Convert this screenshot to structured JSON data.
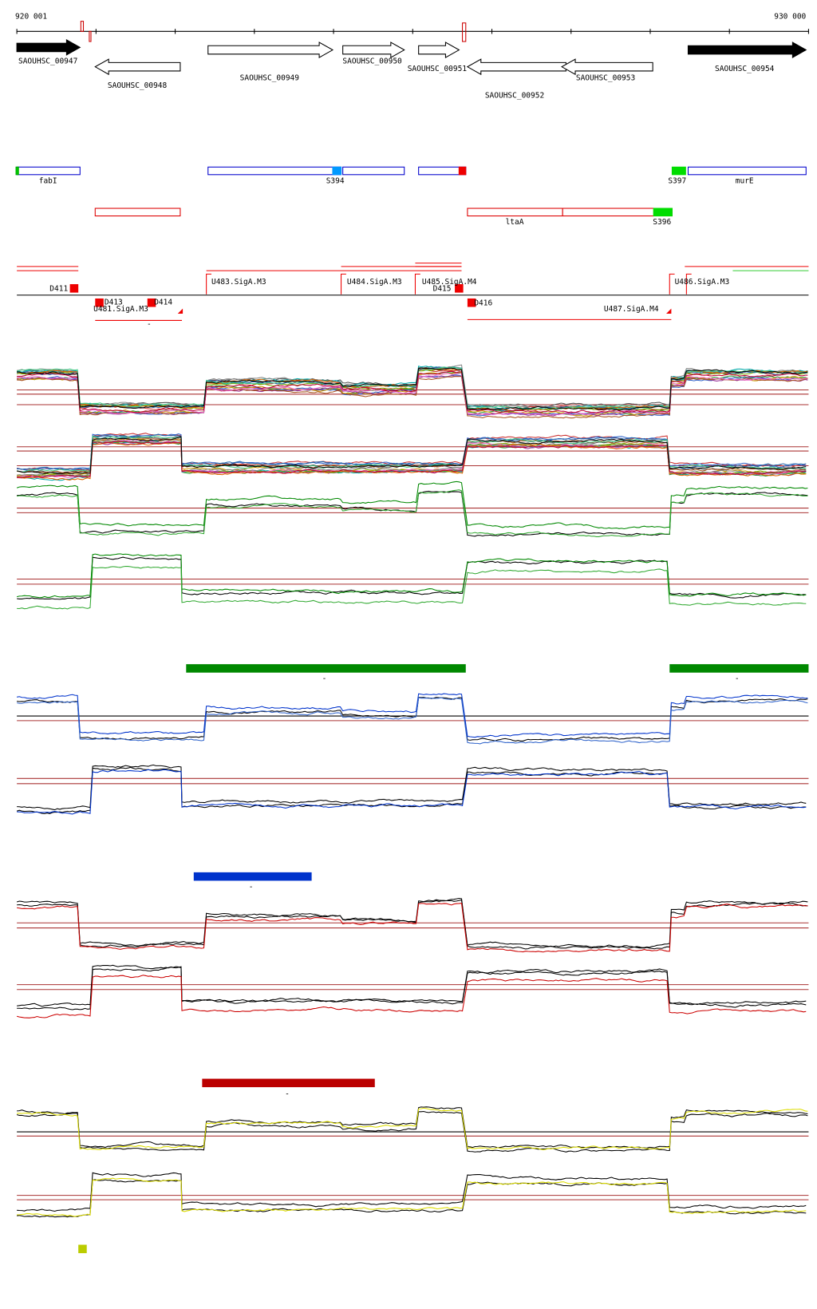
{
  "ruler": {
    "start": "920 001",
    "end": "930 000"
  },
  "genes": [
    "SAOUHSC_00947",
    "SAOUHSC_00948",
    "SAOUHSC_00949",
    "SAOUHSC_00950",
    "SAOUHSC_00951",
    "SAOUHSC_00952",
    "SAOUHSC_00953",
    "SAOUHSC_00954"
  ],
  "features": [
    "fabI",
    "S394",
    "S397",
    "murE",
    "ltaA",
    "S396"
  ],
  "promoters": [
    "D411",
    "U483.SigA.M3",
    "U484.SigA.M3",
    "U485.SigA.M4",
    "D415",
    "D413",
    "D414",
    "U481.SigA.M3",
    "D416",
    "U487.SigA.M4",
    "U486.SigA.M3"
  ],
  "marks": [
    "-",
    "-",
    "-",
    "-",
    "-"
  ]
}
